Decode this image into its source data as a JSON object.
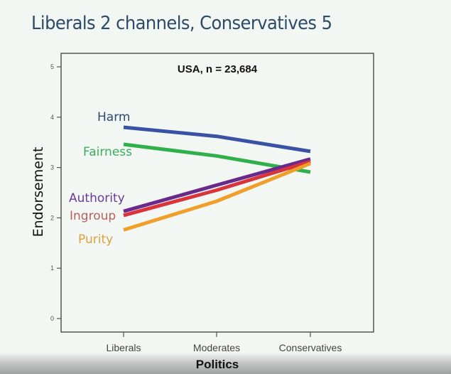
{
  "slide": {
    "title": "Liberals 2 channels, Conservatives 5"
  },
  "chart_data": {
    "type": "line",
    "title": "USA, n = 23,684",
    "xlabel": "Politics",
    "ylabel": "Endorsement",
    "categories": [
      "Liberals",
      "Moderates",
      "Conservatives"
    ],
    "ylim": [
      0,
      5
    ],
    "yticks": [
      0,
      1,
      2,
      3,
      4,
      5
    ],
    "grid": false,
    "legend_position": "inline-left",
    "series": [
      {
        "name": "Harm",
        "color": "#3a52a4",
        "label_color": "#2d4a6e",
        "values": [
          3.8,
          3.62,
          3.32
        ]
      },
      {
        "name": "Fairness",
        "color": "#2fb04a",
        "label_color": "#3aae5c",
        "values": [
          3.46,
          3.23,
          2.91
        ]
      },
      {
        "name": "Authority",
        "color": "#6a2a8c",
        "label_color": "#6a3a96",
        "values": [
          2.13,
          2.65,
          3.17
        ]
      },
      {
        "name": "Ingroup",
        "color": "#d8343c",
        "label_color": "#b86060",
        "values": [
          2.05,
          2.55,
          3.12
        ]
      },
      {
        "name": "Purity",
        "color": "#f0a02a",
        "label_color": "#e0a040",
        "values": [
          1.76,
          2.33,
          3.08
        ]
      }
    ]
  }
}
